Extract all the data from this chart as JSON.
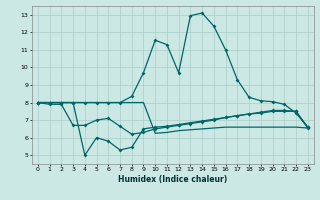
{
  "xlabel": "Humidex (Indice chaleur)",
  "ylabel": "",
  "background_color": "#cce8e4",
  "grid_color": "#aaccca",
  "line_color": "#006666",
  "xlim": [
    -0.5,
    23.5
  ],
  "ylim": [
    4.5,
    13.5
  ],
  "yticks": [
    5,
    6,
    7,
    8,
    9,
    10,
    11,
    12,
    13
  ],
  "xticks": [
    0,
    1,
    2,
    3,
    4,
    5,
    6,
    7,
    8,
    9,
    10,
    11,
    12,
    13,
    14,
    15,
    16,
    17,
    18,
    19,
    20,
    21,
    22,
    23
  ],
  "line1_x": [
    0,
    1,
    2,
    3,
    4,
    5,
    6,
    7,
    8,
    9,
    10,
    11,
    12,
    13,
    14,
    15,
    16,
    17,
    18,
    19,
    20,
    21,
    22,
    23
  ],
  "line1_y": [
    8.0,
    8.0,
    8.0,
    8.0,
    8.0,
    8.0,
    8.0,
    8.0,
    8.35,
    9.7,
    11.55,
    11.3,
    9.7,
    12.95,
    13.1,
    12.35,
    11.0,
    9.3,
    8.3,
    8.1,
    8.05,
    7.9,
    7.4,
    6.6
  ],
  "line2_x": [
    0,
    1,
    2,
    3,
    4,
    5,
    6,
    7,
    8,
    9,
    10,
    11,
    12,
    13,
    14,
    15,
    16,
    17,
    18,
    19,
    20,
    21,
    22,
    23
  ],
  "line2_y": [
    8.0,
    7.9,
    7.9,
    6.7,
    6.7,
    7.0,
    7.1,
    6.65,
    6.2,
    6.3,
    6.5,
    6.6,
    6.7,
    6.8,
    6.9,
    7.0,
    7.15,
    7.25,
    7.35,
    7.45,
    7.55,
    7.55,
    7.5,
    6.6
  ],
  "line3_x": [
    0,
    1,
    2,
    3,
    4,
    5,
    6,
    7,
    8,
    9,
    10,
    11,
    12,
    13,
    14,
    15,
    16,
    17,
    18,
    19,
    20,
    21,
    22,
    23
  ],
  "line3_y": [
    8.0,
    8.0,
    8.0,
    8.0,
    5.0,
    6.0,
    5.8,
    5.3,
    5.45,
    6.5,
    6.6,
    6.65,
    6.75,
    6.85,
    6.95,
    7.05,
    7.15,
    7.25,
    7.35,
    7.4,
    7.5,
    7.5,
    7.5,
    6.55
  ],
  "line4_x": [
    0,
    1,
    2,
    3,
    4,
    5,
    6,
    7,
    8,
    9,
    10,
    11,
    12,
    13,
    14,
    15,
    16,
    17,
    18,
    19,
    20,
    21,
    22,
    23
  ],
  "line4_y": [
    8.0,
    8.0,
    8.0,
    8.0,
    8.0,
    8.0,
    8.0,
    8.0,
    8.0,
    8.0,
    6.25,
    6.3,
    6.4,
    6.45,
    6.5,
    6.55,
    6.6,
    6.6,
    6.6,
    6.6,
    6.6,
    6.6,
    6.6,
    6.55
  ]
}
